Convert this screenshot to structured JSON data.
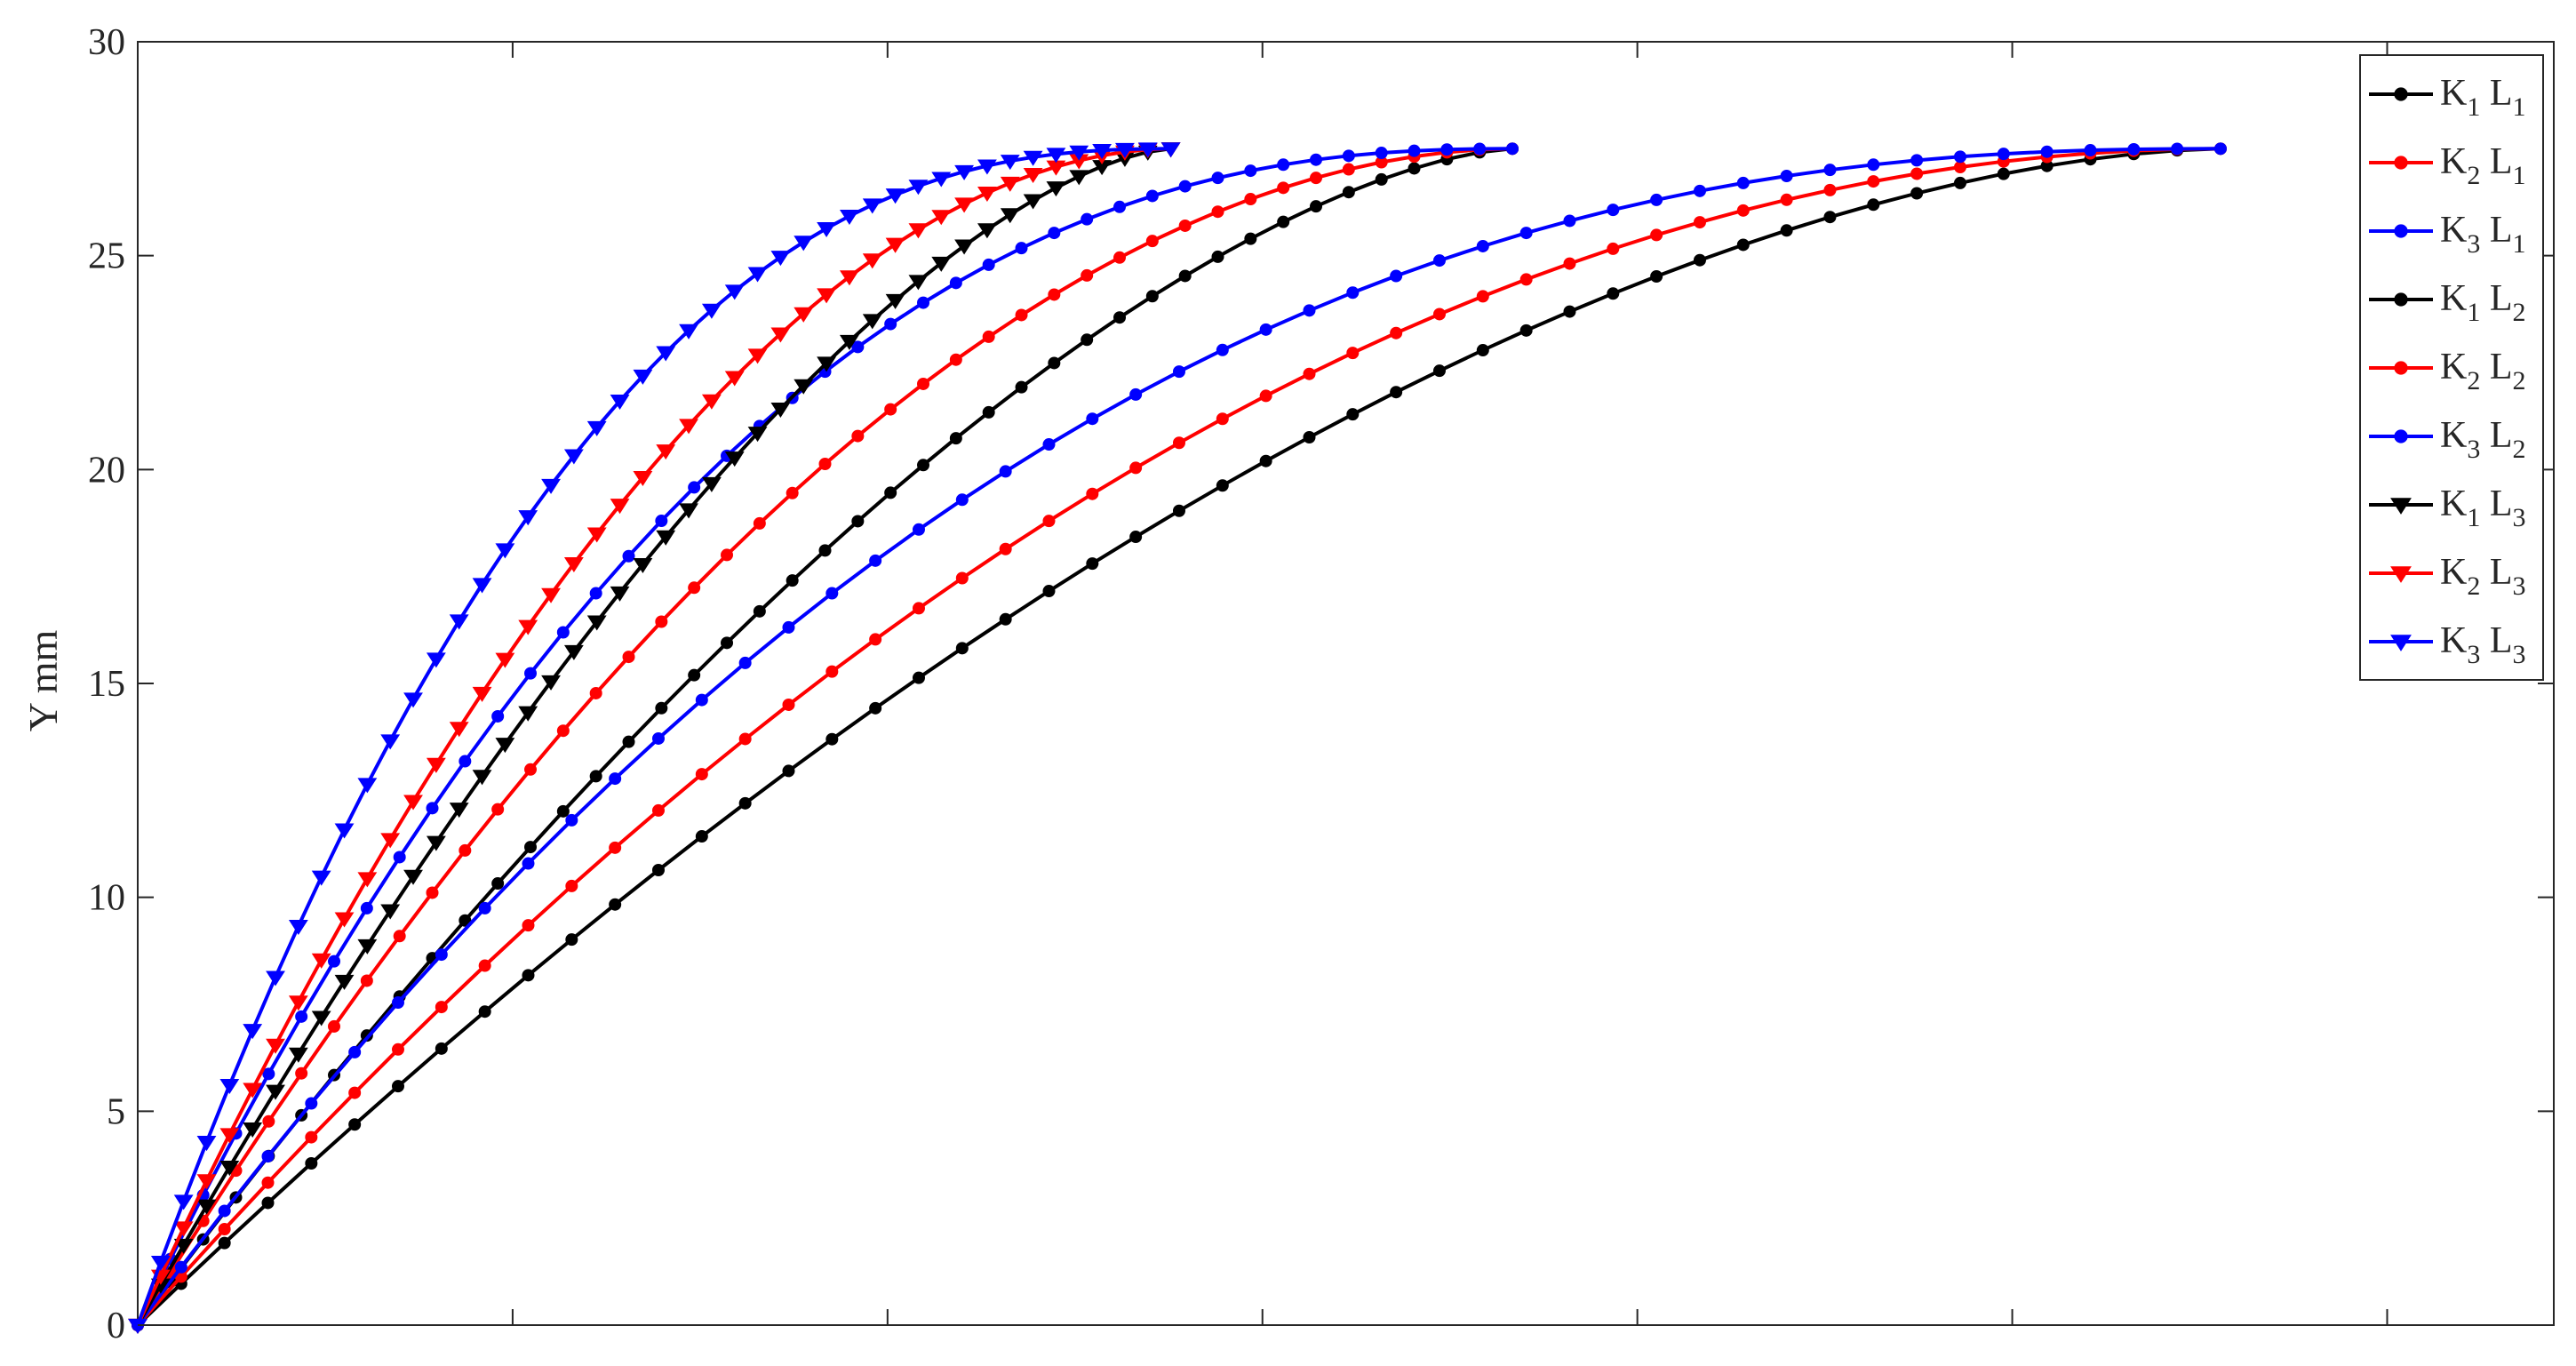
{
  "chart_data": {
    "type": "line",
    "title": "",
    "xlabel": "",
    "ylabel": "Y mm",
    "xlim": [
      0,
      2.9
    ],
    "ylim": [
      0,
      30
    ],
    "yticks": [
      0,
      5,
      10,
      15,
      20,
      25,
      30
    ],
    "yticklabels": [
      "0",
      "5",
      "10",
      "15",
      "20",
      "25",
      "30"
    ],
    "xticks": [
      0.45,
      0.9,
      1.35,
      1.8,
      2.25,
      2.7
    ],
    "xticklabels": [],
    "grid": false,
    "legend_position": "top-right",
    "colors": {
      "K1": "#000000",
      "K2": "#ff0000",
      "K3": "#0000ff",
      "axis": "#262626"
    },
    "series": [
      {
        "name": "K1 L1",
        "legend_main": [
          "K",
          "L"
        ],
        "legend_sub": [
          "1",
          "1"
        ],
        "color": "#000000",
        "marker": "dot",
        "x_end": 1.65,
        "y_end": 27.5,
        "shape": 1.55,
        "points": 43
      },
      {
        "name": "K2 L1",
        "legend_main": [
          "K",
          "L"
        ],
        "legend_sub": [
          "2",
          "1"
        ],
        "color": "#ff0000",
        "marker": "dot",
        "x_end": 1.65,
        "y_end": 27.5,
        "shape": 1.9,
        "points": 43
      },
      {
        "name": "K3 L1",
        "legend_main": [
          "K",
          "L"
        ],
        "legend_sub": [
          "3",
          "1"
        ],
        "color": "#0000ff",
        "marker": "dot",
        "x_end": 1.65,
        "y_end": 27.5,
        "shape": 2.4,
        "points": 43
      },
      {
        "name": "K1 L2",
        "legend_main": [
          "K",
          "L"
        ],
        "legend_sub": [
          "1",
          "2"
        ],
        "color": "#000000",
        "marker": "dot",
        "x_end": 2.5,
        "y_end": 27.5,
        "shape": 1.7,
        "points": 49
      },
      {
        "name": "K2 L2",
        "legend_main": [
          "K",
          "L"
        ],
        "legend_sub": [
          "2",
          "2"
        ],
        "color": "#ff0000",
        "marker": "dot",
        "x_end": 2.5,
        "y_end": 27.5,
        "shape": 2.0,
        "points": 49
      },
      {
        "name": "K3 L2",
        "legend_main": [
          "K",
          "L"
        ],
        "legend_sub": [
          "3",
          "2"
        ],
        "color": "#0000ff",
        "marker": "dot",
        "x_end": 2.5,
        "y_end": 27.5,
        "shape": 2.4,
        "points": 49
      },
      {
        "name": "K1 L3",
        "legend_main": [
          "K",
          "L"
        ],
        "legend_sub": [
          "1",
          "3"
        ],
        "color": "#000000",
        "marker": "triangle-down",
        "x_end": 1.24,
        "y_end": 27.5,
        "shape": 1.55,
        "points": 46
      },
      {
        "name": "K2 L3",
        "legend_main": [
          "K",
          "L"
        ],
        "legend_sub": [
          "2",
          "3"
        ],
        "color": "#ff0000",
        "marker": "triangle-down",
        "x_end": 1.24,
        "y_end": 27.5,
        "shape": 1.9,
        "points": 46
      },
      {
        "name": "K3 L3",
        "legend_main": [
          "K",
          "L"
        ],
        "legend_sub": [
          "3",
          "3"
        ],
        "color": "#0000ff",
        "marker": "triangle-down",
        "x_end": 1.24,
        "y_end": 27.5,
        "shape": 2.45,
        "points": 46
      }
    ]
  }
}
